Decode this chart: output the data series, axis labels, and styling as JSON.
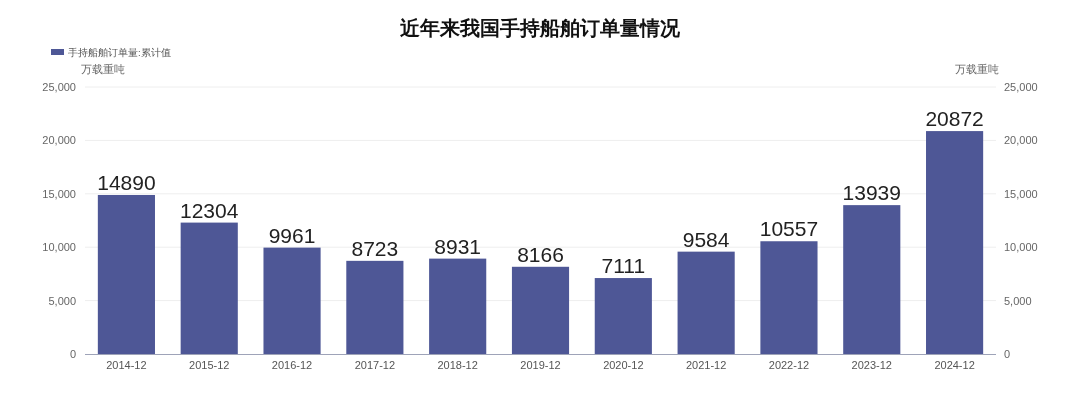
{
  "chart_data": {
    "type": "bar",
    "title": "近年来我国手持船舶订单量情况",
    "ylabel": "万载重吨",
    "y2label": "万载重吨",
    "categories": [
      "2014-12",
      "2015-12",
      "2016-12",
      "2017-12",
      "2018-12",
      "2019-12",
      "2020-12",
      "2021-12",
      "2022-12",
      "2023-12",
      "2024-12"
    ],
    "series": [
      {
        "name": "手持船舶订单量:累计值",
        "color": "#4e5796",
        "values": [
          14890,
          12304,
          9961,
          8723,
          8931,
          8166,
          7111,
          9584,
          10557,
          13939,
          20872
        ]
      }
    ],
    "ylim": [
      0,
      25000
    ],
    "yticks": [
      0,
      {
        "value": 5000,
        "label": "5,000"
      },
      {
        "value": 10000,
        "label": "10,000"
      },
      {
        "value": 15000,
        "label": "15,000"
      },
      {
        "value": 20000,
        "label": "20,000"
      },
      {
        "value": 25000,
        "label": "25,000"
      }
    ],
    "y2lim": [
      0,
      25000
    ],
    "y2ticks": [
      0,
      {
        "value": 5000,
        "label": "5,000"
      },
      {
        "value": 10000,
        "label": "10,000"
      },
      {
        "value": 15000,
        "label": "15,000"
      },
      {
        "value": 20000,
        "label": "20,000"
      },
      {
        "value": 25000,
        "label": "25,000"
      }
    ],
    "grid": "y",
    "legend": "top left",
    "data_labels": true
  }
}
